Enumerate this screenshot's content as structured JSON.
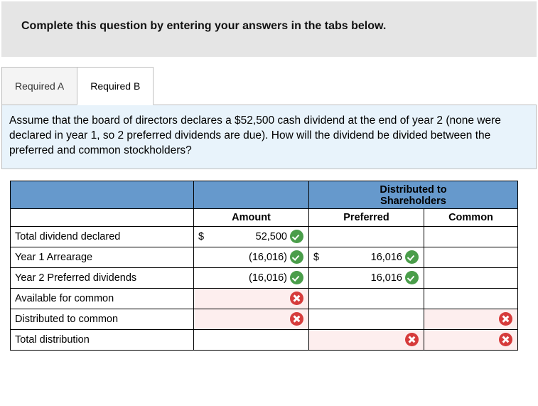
{
  "banner": {
    "text": "Complete this question by entering your answers in the tabs below."
  },
  "tabs": {
    "a": "Required A",
    "b": "Required B",
    "active": "b"
  },
  "prompt": {
    "text": "Assume that the board of directors declares a $52,500 cash dividend at the end of year 2 (none were declared in year 1, so 2 preferred dividends are due). How will the dividend be divided between the preferred and common stockholders?"
  },
  "table": {
    "type": "table",
    "header": {
      "distributed": "Distributed to",
      "shareholders": "Shareholders",
      "amount": "Amount",
      "preferred": "Preferred",
      "common": "Common"
    },
    "colors": {
      "header_bg": "#6699cc",
      "error_bg": "#fdeeee",
      "check": "#4a9d4a",
      "x": "#d63b3b",
      "border": "#000000"
    },
    "rows": [
      {
        "label": "Total dividend declared",
        "amount": {
          "dollar": "$",
          "value": "52,500",
          "mark": "check",
          "err": false
        },
        "preferred": null,
        "common": null
      },
      {
        "label": "Year 1 Arrearage",
        "amount": {
          "dollar": "",
          "value": "(16,016)",
          "mark": "check",
          "err": false
        },
        "preferred": {
          "dollar": "$",
          "value": "16,016",
          "mark": "check",
          "err": false
        },
        "common": null
      },
      {
        "label": "Year 2 Preferred dividends",
        "amount": {
          "dollar": "",
          "value": "(16,016)",
          "mark": "check",
          "err": false
        },
        "preferred": {
          "dollar": "",
          "value": "16,016",
          "mark": "check",
          "err": false
        },
        "common": null
      },
      {
        "label": "Available for common",
        "amount": {
          "dollar": "",
          "value": "",
          "mark": "x",
          "err": true
        },
        "preferred": null,
        "common": null
      },
      {
        "label": "Distributed to common",
        "amount": {
          "dollar": "",
          "value": "",
          "mark": "x",
          "err": true
        },
        "preferred": null,
        "common": {
          "dollar": "",
          "value": "",
          "mark": "x",
          "err": true
        }
      },
      {
        "label": "Total distribution",
        "amount": null,
        "preferred": {
          "dollar": "",
          "value": "",
          "mark": "x",
          "err": true
        },
        "common": {
          "dollar": "",
          "value": "",
          "mark": "x",
          "err": true
        }
      }
    ]
  }
}
